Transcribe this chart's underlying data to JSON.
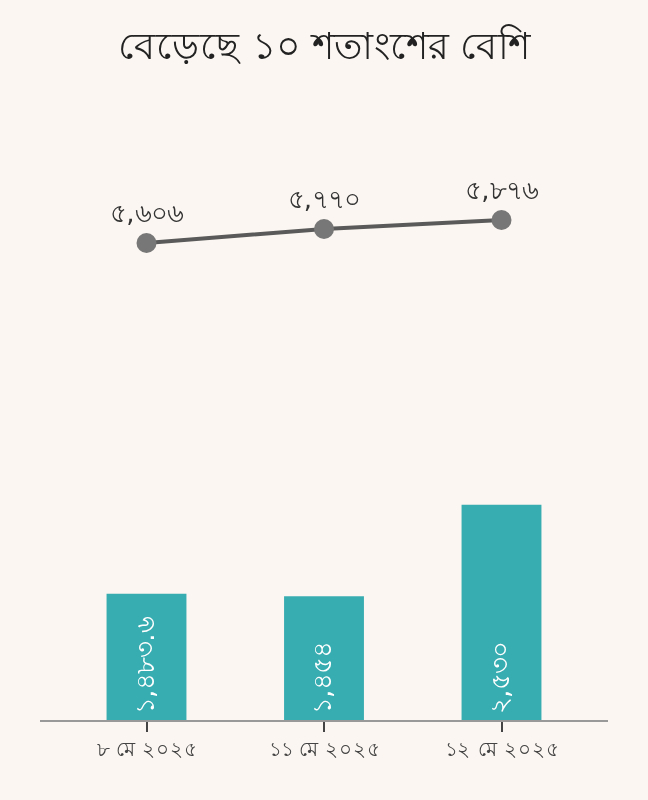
{
  "chart_data": {
    "type": "bar",
    "title": "বেড়েছে ১০ শতাংশের বেশি",
    "categories": [
      "৮ মে ২০২৫",
      "১১ মে ২০২৫",
      "১২ মে ২০২৫"
    ],
    "series": [
      {
        "type": "line",
        "color": "#5a5a5a",
        "values": [
          5606,
          5770,
          5876
        ],
        "value_labels": [
          "৫,৬০৬",
          "৫,৭৭০",
          "৫,৮৭৬"
        ]
      },
      {
        "color": "#38adb1",
        "values": [
          1483.6,
          1454,
          2530
        ],
        "value_labels": [
          "১,৪৮৩.৬",
          "১,৪৫৪",
          "২,৫৩০"
        ]
      }
    ],
    "marker": "circle"
  }
}
